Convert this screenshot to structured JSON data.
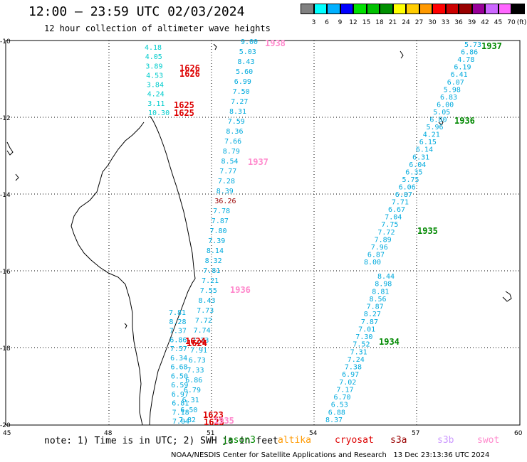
{
  "title": "12:00 — 23:59 UTC 02/03/2024",
  "subtitle": "12 hour collection of altimeter wave heights",
  "scale": {
    "unit_label": "(ft)",
    "labels": [
      "3",
      "6",
      "9",
      "12",
      "15",
      "18",
      "21",
      "24",
      "27",
      "30",
      "33",
      "36",
      "39",
      "42",
      "45",
      "70"
    ],
    "colors": [
      "#808080",
      "#00ffff",
      "#00b0ff",
      "#0000ff",
      "#00e000",
      "#00c000",
      "#009000",
      "#ffff00",
      "#ffcc00",
      "#ff9900",
      "#ff0000",
      "#cc0000",
      "#990000",
      "#990099",
      "#cc66ff",
      "#ff66ff",
      "#000000"
    ]
  },
  "axes": {
    "lon_labels": [
      "45",
      "48",
      "51",
      "54",
      "57",
      "60"
    ],
    "lat_labels": [
      "-10",
      "-12",
      "-14",
      "-16",
      "-18",
      "-20"
    ]
  },
  "tracks": [
    {
      "name": "track-1937-west",
      "color": "#00aadd",
      "values": [
        "9.00",
        "5.03",
        "8.43",
        "5.60",
        "6.99",
        "7.50",
        "7.27",
        "8.31",
        "7.59",
        "8.36",
        "7.66",
        "8.79",
        "8.54",
        "7.77",
        "7.28",
        "8.39",
        "36.26",
        "7.78",
        "7.87",
        "7.80",
        "7.39",
        "8.14",
        "8.32",
        "7.81",
        "7.21",
        "7.55",
        "8.43",
        "7.73",
        "7.72",
        "7.74",
        "7.23",
        "7.91",
        "6.73",
        "7.33",
        "6.86",
        "6.79",
        "6.31",
        "6.50",
        "7.82"
      ],
      "special_index": 16,
      "special_color": "#990000"
    },
    {
      "name": "track-1937-east",
      "color": "#00aadd",
      "values": [
        "5.73",
        "6.86",
        "4.78",
        "6.19",
        "6.41",
        "6.07",
        "5.98",
        "6.83",
        "6.00",
        "5.05",
        "6.80",
        "5.96",
        "4.21",
        "6.15",
        "6.14",
        "6.31",
        "6.04",
        "6.35",
        "5.75",
        "6.06",
        "6.87",
        "7.71",
        "6.67",
        "7.04",
        "7.75",
        "7.72",
        "7.89",
        "7.96",
        "6.87",
        "8.00"
      ]
    },
    {
      "name": "track-1934",
      "color": "#00aadd",
      "values": [
        "8.44",
        "8.98",
        "8.81",
        "8.56",
        "7.87",
        "8.27",
        "7.87",
        "7.01",
        "7.30",
        "7.52",
        "7.31",
        "7.24",
        "7.38",
        "6.97",
        "7.02",
        "7.17",
        "6.70",
        "6.53",
        "6.88",
        "8.37"
      ]
    },
    {
      "name": "track-1626",
      "color": "#00cccc",
      "values": [
        "4.18",
        "4.05",
        "3.89",
        "4.53",
        "3.84",
        "4.24",
        "3.11",
        "10.30"
      ]
    },
    {
      "name": "track-1624",
      "color": "#00aadd",
      "values": [
        "7.81",
        "8.28",
        "7.37",
        "6.86",
        "7.57",
        "6.34",
        "6.68",
        "6.50",
        "6.59",
        "6.97",
        "6.81",
        "7.18",
        "7.04"
      ]
    }
  ],
  "time_labels": [
    {
      "text": "1938",
      "color": "#ff88cc"
    },
    {
      "text": "1937",
      "color": "#ff88cc"
    },
    {
      "text": "1936",
      "color": "#ff88cc"
    },
    {
      "text": "1626",
      "color": "#dd0000"
    },
    {
      "text": "1626",
      "color": "#dd0000"
    },
    {
      "text": "1625",
      "color": "#dd0000"
    },
    {
      "text": "1625",
      "color": "#dd0000"
    },
    {
      "text": "1624",
      "color": "#dd0000"
    },
    {
      "text": "1624",
      "color": "#dd0000"
    },
    {
      "text": "1623",
      "color": "#dd0000"
    },
    {
      "text": "1623",
      "color": "#dd0000"
    },
    {
      "text": "1935",
      "color": "#ff88cc"
    },
    {
      "text": "1937",
      "color": "#008800"
    },
    {
      "text": "1936",
      "color": "#008800"
    },
    {
      "text": "1935",
      "color": "#008800"
    },
    {
      "text": "1934",
      "color": "#008800"
    }
  ],
  "note": "note: 1) Time is in UTC; 2) SWH is in feet",
  "legend": [
    {
      "label": "jason3",
      "color": "#008800"
    },
    {
      "label": "altika",
      "color": "#ff9900"
    },
    {
      "label": "cryosat",
      "color": "#dd0000"
    },
    {
      "label": "s3a",
      "color": "#990000"
    },
    {
      "label": "s3b",
      "color": "#cc99ff"
    },
    {
      "label": "swot",
      "color": "#ff88cc"
    }
  ],
  "credit": "NOAA/NESDIS Center for Satellite Applications and Research   13 Dec 23:13:36 UTC 2024"
}
